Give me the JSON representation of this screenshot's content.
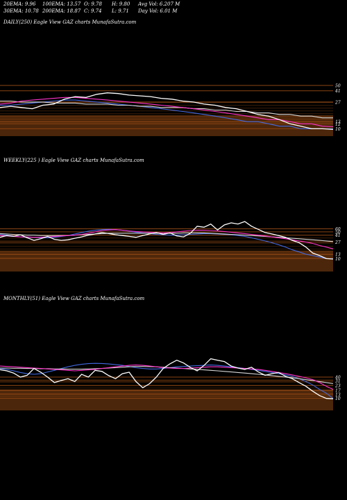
{
  "header": {
    "row1": [
      "20EMA: 9.96",
      "100EMA: 13.57",
      "O: 9.78",
      "H: 9.80",
      "Avg Vol: 6.207 M"
    ],
    "row2": [
      "30EMA: 10.78",
      "200EMA: 18.87",
      "C: 9.74",
      "L: 9.71",
      "Day Vol: 6.01 M"
    ]
  },
  "panels": [
    {
      "label": "DAILY(250) Eagle  View  GAZ charts MunafaSutra.com"
    },
    {
      "label": "WEEKLY(225                    ) Eagle  View  GAZ charts MunafaSutra.com"
    },
    {
      "label": "MONTHLY(51) Eagle  View  GAZ charts MunafaSutra.com"
    }
  ],
  "colors": {
    "background": "#000000",
    "band": "#8B4513",
    "price": "#ffffff",
    "ema_blue": "#4169e1",
    "ema_magenta": "#ff33cc",
    "ema_white": "#d8d8d8"
  },
  "chart_data": [
    {
      "type": "line",
      "title": "DAILY(250)",
      "ylim": [
        8,
        60
      ],
      "price_levels": [
        50,
        41,
        27,
        13,
        12,
        10
      ],
      "series": [
        {
          "values": [
            22,
            23,
            22,
            21,
            24,
            25,
            30,
            33,
            32,
            36,
            38,
            37,
            35,
            34,
            33,
            31,
            30,
            28,
            27,
            25,
            24,
            22,
            21,
            19,
            17,
            16,
            14,
            12,
            11,
            10,
            10,
            9.74
          ]
        },
        {
          "values": [
            25,
            26,
            28,
            29,
            30,
            31,
            32,
            32,
            31,
            30,
            29,
            28,
            27,
            26,
            25,
            24,
            23,
            22,
            21,
            20,
            19,
            18,
            17,
            16,
            15,
            14,
            14,
            13,
            12,
            12,
            11,
            10.78
          ]
        },
        {
          "values": [
            28,
            28,
            27,
            27,
            27,
            26,
            26,
            26,
            25,
            25,
            25,
            24,
            24,
            23,
            23,
            22,
            22,
            22,
            21,
            21,
            20,
            20,
            19,
            19,
            18,
            18,
            17,
            17,
            16,
            16,
            15,
            15
          ]
        },
        {
          "values": [
            24,
            24,
            25,
            26,
            27,
            28,
            29,
            29,
            28,
            27,
            26,
            25,
            24,
            23,
            22,
            21,
            20,
            19,
            18,
            17,
            16,
            15,
            14,
            13,
            13,
            12,
            11,
            11,
            10,
            10,
            10,
            9.96
          ]
        }
      ]
    },
    {
      "type": "line",
      "title": "WEEKLY(225)",
      "ylim": [
        5,
        130
      ],
      "price_levels": [
        60,
        50,
        41,
        27,
        13,
        10
      ],
      "series": [
        {
          "values": [
            36,
            40,
            38,
            42,
            35,
            30,
            33,
            38,
            32,
            30,
            31,
            34,
            37,
            41,
            44,
            48,
            45,
            42,
            40,
            38,
            36,
            40,
            44,
            48,
            43,
            47,
            39,
            37,
            46,
            70,
            66,
            80,
            56,
            76,
            86,
            80,
            93,
            70,
            58,
            48,
            44,
            40,
            36,
            30,
            26,
            20,
            14,
            12,
            10,
            9.74
          ]
        },
        {
          "values": [
            40,
            39,
            38,
            37,
            37,
            36,
            36,
            37,
            38,
            39,
            40,
            41,
            43,
            46,
            50,
            54,
            56,
            57,
            55,
            53,
            51,
            50,
            49,
            48,
            47,
            48,
            50,
            52,
            54,
            55,
            55,
            54,
            53,
            51,
            49,
            47,
            45,
            43,
            41,
            39,
            37,
            35,
            33,
            31,
            29,
            27,
            25,
            22,
            20,
            18
          ]
        },
        {
          "values": [
            45,
            44,
            43,
            42,
            41,
            41,
            40,
            40,
            40,
            40,
            40,
            41,
            42,
            43,
            44,
            45,
            46,
            46,
            46,
            46,
            46,
            46,
            46,
            46,
            46,
            46,
            46,
            47,
            47,
            47,
            47,
            46,
            45,
            44,
            43,
            42,
            41,
            40,
            39,
            38,
            37,
            36,
            35,
            34,
            33,
            32,
            31,
            30,
            29,
            28
          ]
        },
        {
          "values": [
            43,
            41,
            39,
            37,
            36,
            36,
            35,
            35,
            36,
            38,
            40,
            44,
            48,
            52,
            55,
            57,
            58,
            57,
            55,
            52,
            49,
            47,
            45,
            43,
            42,
            41,
            41,
            42,
            43,
            44,
            45,
            45,
            44,
            43,
            42,
            40,
            38,
            35,
            32,
            29,
            26,
            23,
            20,
            17,
            15,
            13,
            12,
            11,
            10,
            9.96
          ]
        }
      ]
    },
    {
      "type": "line",
      "title": "MONTHLY(51)",
      "ylim": [
        5,
        170
      ],
      "price_levels": [
        40,
        31,
        23,
        17,
        13,
        10
      ],
      "series": [
        {
          "values": [
            65,
            60,
            52,
            40,
            45,
            70,
            55,
            40,
            28,
            32,
            36,
            30,
            48,
            40,
            62,
            58,
            44,
            36,
            50,
            55,
            30,
            20,
            26,
            40,
            70,
            95,
            120,
            100,
            75,
            60,
            85,
            132,
            120,
            110,
            82,
            72,
            66,
            76,
            56,
            45,
            50,
            54,
            42,
            36,
            28,
            22,
            16,
            12,
            10,
            9.74
          ]
        },
        {
          "values": [
            82,
            80,
            78,
            76,
            74,
            72,
            70,
            68,
            66,
            64,
            62,
            60,
            62,
            64,
            66,
            70,
            74,
            78,
            82,
            86,
            88,
            86,
            82,
            78,
            74,
            72,
            70,
            70,
            72,
            74,
            76,
            78,
            78,
            76,
            74,
            72,
            70,
            68,
            66,
            62,
            58,
            54,
            50,
            46,
            42,
            38,
            34,
            28,
            22,
            18
          ]
        },
        {
          "values": [
            72,
            72,
            71,
            71,
            70,
            70,
            69,
            69,
            68,
            68,
            67,
            67,
            67,
            68,
            69,
            70,
            72,
            74,
            76,
            78,
            80,
            80,
            79,
            78,
            76,
            74,
            72,
            70,
            68,
            66,
            64,
            62,
            60,
            58,
            56,
            54,
            52,
            50,
            48,
            46,
            44,
            42,
            40,
            38,
            36,
            34,
            32,
            30,
            28,
            26
          ]
        },
        {
          "values": [
            70,
            66,
            60,
            54,
            50,
            48,
            50,
            56,
            62,
            70,
            78,
            86,
            92,
            96,
            98,
            97,
            94,
            90,
            86,
            80,
            74,
            70,
            68,
            68,
            70,
            74,
            78,
            80,
            82,
            84,
            86,
            88,
            86,
            82,
            78,
            74,
            70,
            66,
            62,
            58,
            54,
            50,
            46,
            42,
            36,
            30,
            24,
            18,
            14,
            9.96
          ]
        }
      ]
    }
  ]
}
